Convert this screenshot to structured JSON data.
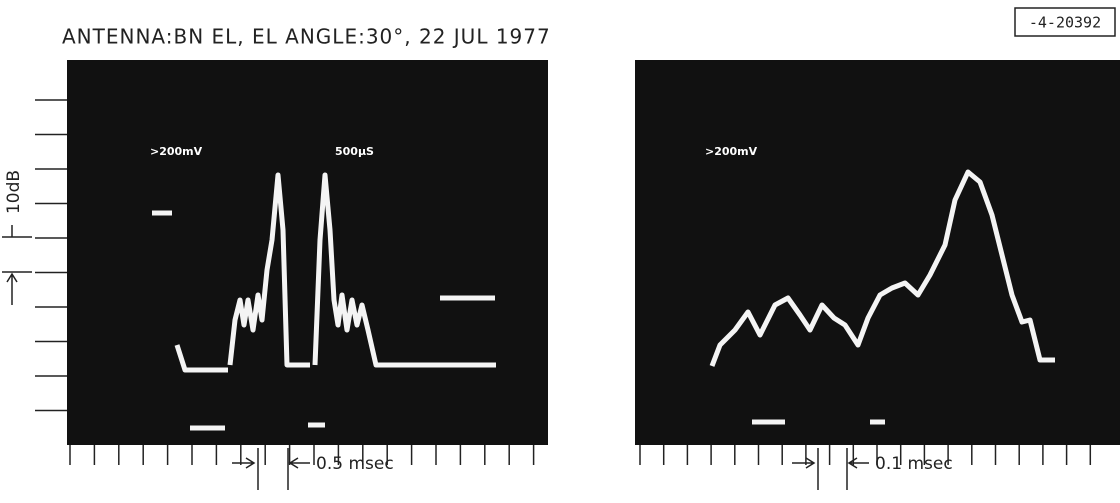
{
  "header": {
    "caption": "ANTENNA:BN EL,   EL ANGLE:30°,   22 JUL 1977",
    "figure_id": "-4-20392"
  },
  "panels": [
    {
      "labels": [
        ">200mV",
        "500µS"
      ],
      "y_scale": "10dB",
      "scale_bar": "0.5 msec"
    },
    {
      "labels": [
        ">200mV"
      ],
      "scale_bar": "0.1 msec"
    }
  ]
}
